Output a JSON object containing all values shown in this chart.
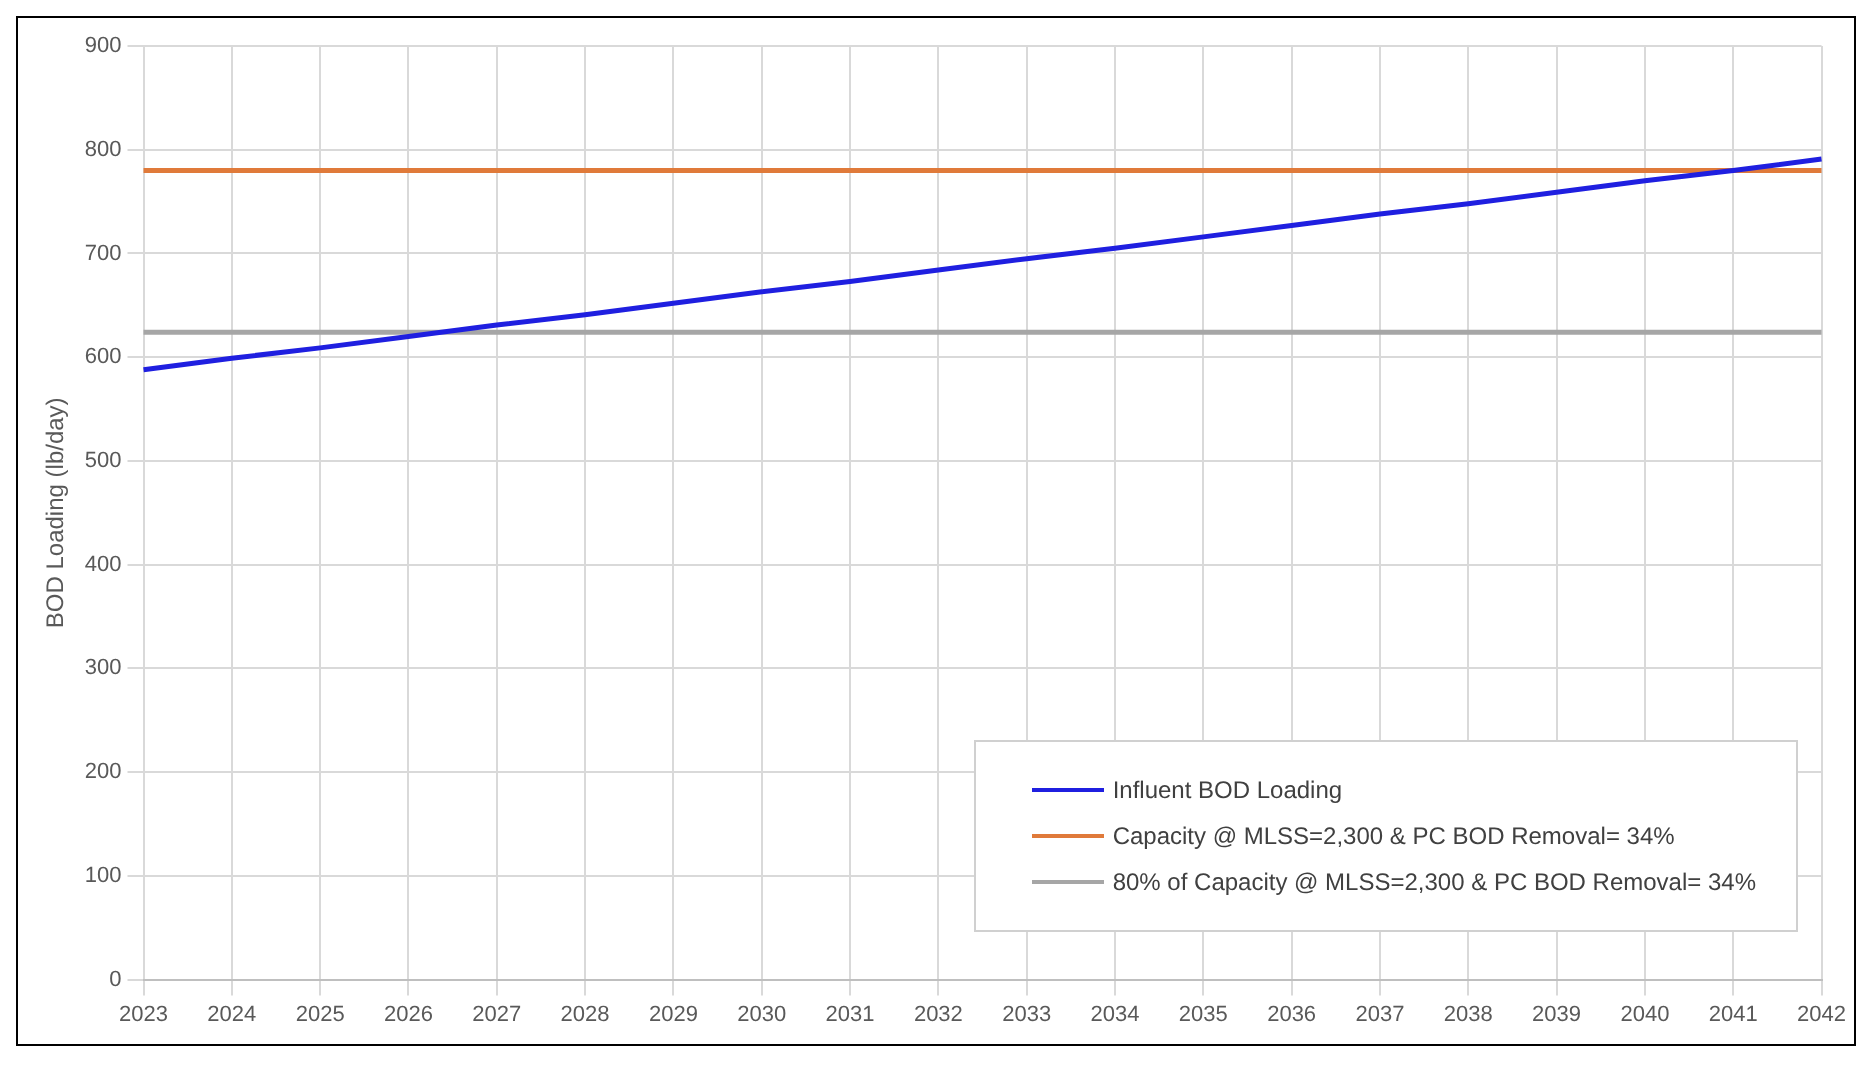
{
  "chart_data": {
    "type": "line",
    "ylabel": "BOD Loading (lb/day)",
    "categories": [
      "2023",
      "2024",
      "2025",
      "2026",
      "2027",
      "2028",
      "2029",
      "2030",
      "2031",
      "2032",
      "2033",
      "2034",
      "2035",
      "2036",
      "2037",
      "2038",
      "2039",
      "2040",
      "2041",
      "2042"
    ],
    "series": [
      {
        "name": "Influent BOD Loading",
        "color": "#1f1fe0",
        "values": [
          588,
          599,
          609,
          620,
          631,
          641,
          652,
          663,
          673,
          684,
          695,
          705,
          716,
          727,
          738,
          748,
          759,
          770,
          780,
          791
        ]
      },
      {
        "name": "Capacity @ MLSS=2,300 & PC BOD Removal= 34%",
        "color": "#e07a3a",
        "values": [
          780,
          780,
          780,
          780,
          780,
          780,
          780,
          780,
          780,
          780,
          780,
          780,
          780,
          780,
          780,
          780,
          780,
          780,
          780,
          780
        ]
      },
      {
        "name": "80% of Capacity @ MLSS=2,300 & PC BOD Removal= 34%",
        "color": "#a6a6a6",
        "values": [
          624,
          624,
          624,
          624,
          624,
          624,
          624,
          624,
          624,
          624,
          624,
          624,
          624,
          624,
          624,
          624,
          624,
          624,
          624,
          624
        ]
      }
    ],
    "ylim": [
      0,
      900
    ],
    "yticks": [
      0,
      100,
      200,
      300,
      400,
      500,
      600,
      700,
      800,
      900
    ],
    "grid": true,
    "legend": "bottom right",
    "marker": "none",
    "line_style": "solid"
  }
}
